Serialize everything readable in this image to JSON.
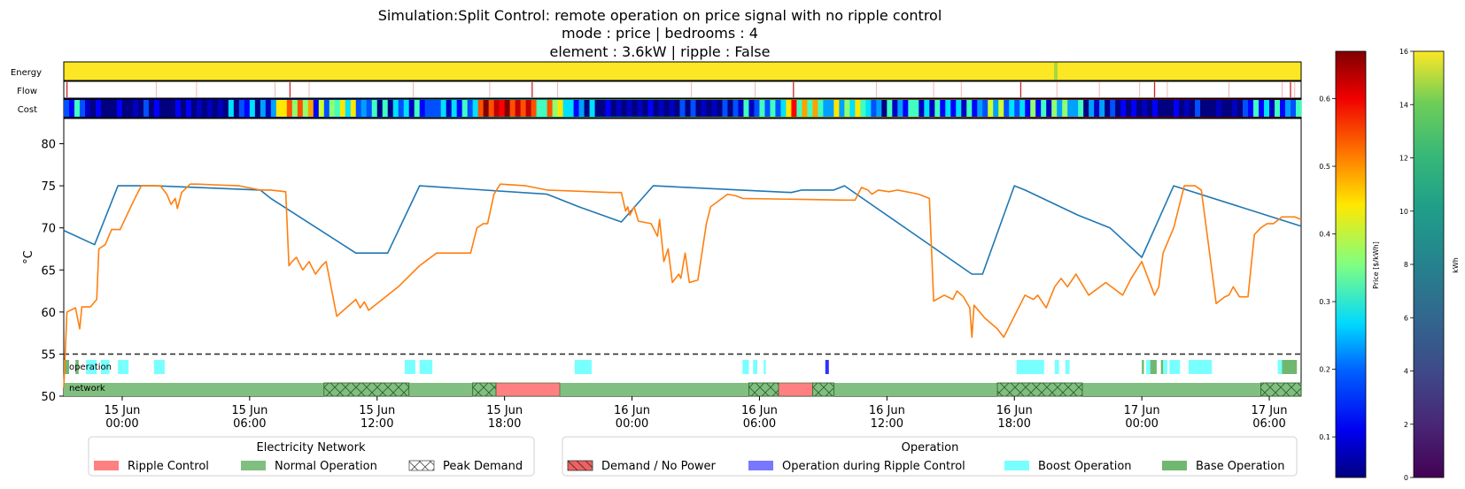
{
  "title": {
    "line1": "Simulation:Split Control: remote operation on price signal with no ripple control",
    "line2": "mode : price | bedrooms : 4",
    "line3": "element : 3.6kW | ripple : False"
  },
  "strips": {
    "energy": "Energy",
    "flow": "Flow",
    "cost": "Cost"
  },
  "band_labels": {
    "operation": "operation",
    "network": "network"
  },
  "colorbars": {
    "price": {
      "label": "Price [$/kWh]",
      "colormap": "jet",
      "ticks": [
        "0.1",
        "0.2",
        "0.3",
        "0.4",
        "0.5",
        "0.6"
      ]
    },
    "energy": {
      "label": "kWh",
      "colormap": "viridis",
      "ticks": [
        "0",
        "2",
        "4",
        "6",
        "8",
        "10",
        "12",
        "14",
        "16"
      ]
    }
  },
  "legends": {
    "network": {
      "title": "Electricity Network",
      "items": [
        {
          "label": "Ripple Control",
          "color": "#ff8080",
          "pattern": "solid"
        },
        {
          "label": "Normal Operation",
          "color": "#80bf80",
          "pattern": "solid"
        },
        {
          "label": "Peak Demand",
          "color": "#ffffff",
          "pattern": "cross-hatch"
        }
      ]
    },
    "operation": {
      "title": "Operation",
      "items": [
        {
          "label": "Demand / No Power",
          "color": "#f06060",
          "pattern": "diagonal-hatch"
        },
        {
          "label": "Operation during Ripple Control",
          "color": "#7878ff",
          "pattern": "solid"
        },
        {
          "label": "Boost Operation",
          "color": "#78ffff",
          "pattern": "solid"
        },
        {
          "label": "Base Operation",
          "color": "#70b870",
          "pattern": "solid"
        }
      ]
    }
  },
  "chart_data": {
    "type": "line",
    "ylabel": "°C",
    "ylim": [
      50,
      83
    ],
    "yticks": [
      50,
      55,
      60,
      65,
      70,
      75,
      80
    ],
    "xlim_hours": [
      -2.75,
      55.5
    ],
    "x_ticks": [
      {
        "h": 0,
        "label": "15 Jun\n00:00"
      },
      {
        "h": 6,
        "label": "15 Jun\n06:00"
      },
      {
        "h": 12,
        "label": "15 Jun\n12:00"
      },
      {
        "h": 18,
        "label": "15 Jun\n18:00"
      },
      {
        "h": 24,
        "label": "16 Jun\n00:00"
      },
      {
        "h": 30,
        "label": "16 Jun\n06:00"
      },
      {
        "h": 36,
        "label": "16 Jun\n12:00"
      },
      {
        "h": 42,
        "label": "16 Jun\n18:00"
      },
      {
        "h": 48,
        "label": "17 Jun\n00:00"
      },
      {
        "h": 54,
        "label": "17 Jun\n06:00"
      }
    ],
    "threshold": 55,
    "series": [
      {
        "color": "#1f77b4",
        "points": [
          [
            -2.75,
            69.7
          ],
          [
            -1.3,
            68
          ],
          [
            -0.2,
            75
          ],
          [
            1.5,
            75
          ],
          [
            6.5,
            74.5
          ],
          [
            7,
            73.5
          ],
          [
            11,
            67
          ],
          [
            12.5,
            67
          ],
          [
            14,
            75
          ],
          [
            20,
            74
          ],
          [
            21.5,
            72.5
          ],
          [
            23.5,
            70.7
          ],
          [
            25,
            75
          ],
          [
            31.5,
            74.2
          ],
          [
            32,
            74.5
          ],
          [
            32.5,
            74.5
          ],
          [
            33.5,
            74.5
          ],
          [
            34,
            75
          ],
          [
            40,
            64.5
          ],
          [
            40.5,
            64.5
          ],
          [
            42,
            75
          ],
          [
            42.5,
            74.5
          ],
          [
            45,
            71.5
          ],
          [
            46.5,
            70
          ],
          [
            48,
            66.5
          ],
          [
            49.5,
            75
          ],
          [
            55.5,
            70.2
          ]
        ]
      },
      {
        "color": "#ff7f0e",
        "points": [
          [
            -2.75,
            51
          ],
          [
            -2.6,
            60
          ],
          [
            -2.2,
            60.5
          ],
          [
            -2,
            58
          ],
          [
            -1.9,
            60.6
          ],
          [
            -1.5,
            60.6
          ],
          [
            -1.2,
            61.5
          ],
          [
            -1.1,
            67.5
          ],
          [
            -0.8,
            68
          ],
          [
            -0.5,
            69.8
          ],
          [
            -0.1,
            69.8
          ],
          [
            0.5,
            73
          ],
          [
            0.9,
            75
          ],
          [
            1.3,
            75
          ],
          [
            1.8,
            75
          ],
          [
            2.1,
            74
          ],
          [
            2.3,
            72.8
          ],
          [
            2.5,
            73.5
          ],
          [
            2.6,
            72.3
          ],
          [
            2.8,
            74.2
          ],
          [
            3.2,
            75.2
          ],
          [
            3.5,
            75.2
          ],
          [
            5.5,
            75
          ],
          [
            6.5,
            74.5
          ],
          [
            7,
            74.5
          ],
          [
            7.7,
            74.3
          ],
          [
            7.85,
            65.5
          ],
          [
            8,
            66
          ],
          [
            8.2,
            66.5
          ],
          [
            8.5,
            65
          ],
          [
            8.8,
            66
          ],
          [
            9.1,
            64.5
          ],
          [
            9.4,
            65.5
          ],
          [
            9.6,
            66
          ],
          [
            10.1,
            59.5
          ],
          [
            11,
            61.5
          ],
          [
            11.2,
            60.5
          ],
          [
            11.4,
            61.2
          ],
          [
            11.6,
            60.2
          ],
          [
            13,
            63
          ],
          [
            14,
            65.5
          ],
          [
            14.8,
            67
          ],
          [
            16,
            67
          ],
          [
            16.4,
            67
          ],
          [
            16.7,
            70
          ],
          [
            17,
            70.5
          ],
          [
            17.2,
            70.5
          ],
          [
            17.5,
            74
          ],
          [
            17.8,
            75.2
          ],
          [
            19,
            75
          ],
          [
            20,
            74.5
          ],
          [
            23,
            74.2
          ],
          [
            23.5,
            74.2
          ],
          [
            23.7,
            72
          ],
          [
            23.8,
            72.5
          ],
          [
            23.9,
            71.5
          ],
          [
            24.1,
            72.5
          ],
          [
            24.3,
            70.8
          ],
          [
            24.9,
            70.5
          ],
          [
            25.2,
            69
          ],
          [
            25.3,
            71
          ],
          [
            25.5,
            66
          ],
          [
            25.7,
            67.5
          ],
          [
            25.9,
            63.5
          ],
          [
            26.2,
            64.5
          ],
          [
            26.3,
            64
          ],
          [
            26.5,
            67
          ],
          [
            26.7,
            63.5
          ],
          [
            27.1,
            63.8
          ],
          [
            27.5,
            70.5
          ],
          [
            27.7,
            72.5
          ],
          [
            28.5,
            74
          ],
          [
            28.9,
            73.8
          ],
          [
            29.2,
            73.5
          ],
          [
            34,
            73.3
          ],
          [
            34.5,
            73.3
          ],
          [
            34.8,
            74.8
          ],
          [
            35.1,
            74.5
          ],
          [
            35.3,
            74
          ],
          [
            35.6,
            74.5
          ],
          [
            36.1,
            74.3
          ],
          [
            36.5,
            74.5
          ],
          [
            37.5,
            74
          ],
          [
            38,
            73.5
          ],
          [
            38.2,
            61.3
          ],
          [
            38.7,
            62
          ],
          [
            39.1,
            61.5
          ],
          [
            39.3,
            62.5
          ],
          [
            39.6,
            61.8
          ],
          [
            39.9,
            60.5
          ],
          [
            40,
            57
          ],
          [
            40.1,
            60.8
          ],
          [
            40.6,
            59.3
          ],
          [
            41.2,
            58
          ],
          [
            41.5,
            57
          ],
          [
            42.5,
            62
          ],
          [
            42.9,
            61.5
          ],
          [
            43.1,
            62
          ],
          [
            43.5,
            60.5
          ],
          [
            43.9,
            63
          ],
          [
            44.2,
            64
          ],
          [
            44.5,
            63
          ],
          [
            44.9,
            64.5
          ],
          [
            45.5,
            62
          ],
          [
            46.3,
            63.5
          ],
          [
            47.1,
            62
          ],
          [
            47.5,
            64
          ],
          [
            48,
            66
          ],
          [
            48.6,
            62
          ],
          [
            48.8,
            63
          ],
          [
            49,
            67
          ],
          [
            49.5,
            70
          ],
          [
            50,
            75
          ],
          [
            50.5,
            75
          ],
          [
            50.8,
            74.5
          ],
          [
            51.5,
            61
          ],
          [
            51.9,
            61.8
          ],
          [
            52.1,
            62
          ],
          [
            52.3,
            63
          ],
          [
            52.6,
            61.8
          ],
          [
            53,
            61.8
          ],
          [
            53.3,
            69.2
          ],
          [
            53.6,
            70
          ],
          [
            53.9,
            70.5
          ],
          [
            54.2,
            70.5
          ],
          [
            54.6,
            71.3
          ],
          [
            55.2,
            71.3
          ],
          [
            55.5,
            71
          ]
        ]
      }
    ]
  }
}
